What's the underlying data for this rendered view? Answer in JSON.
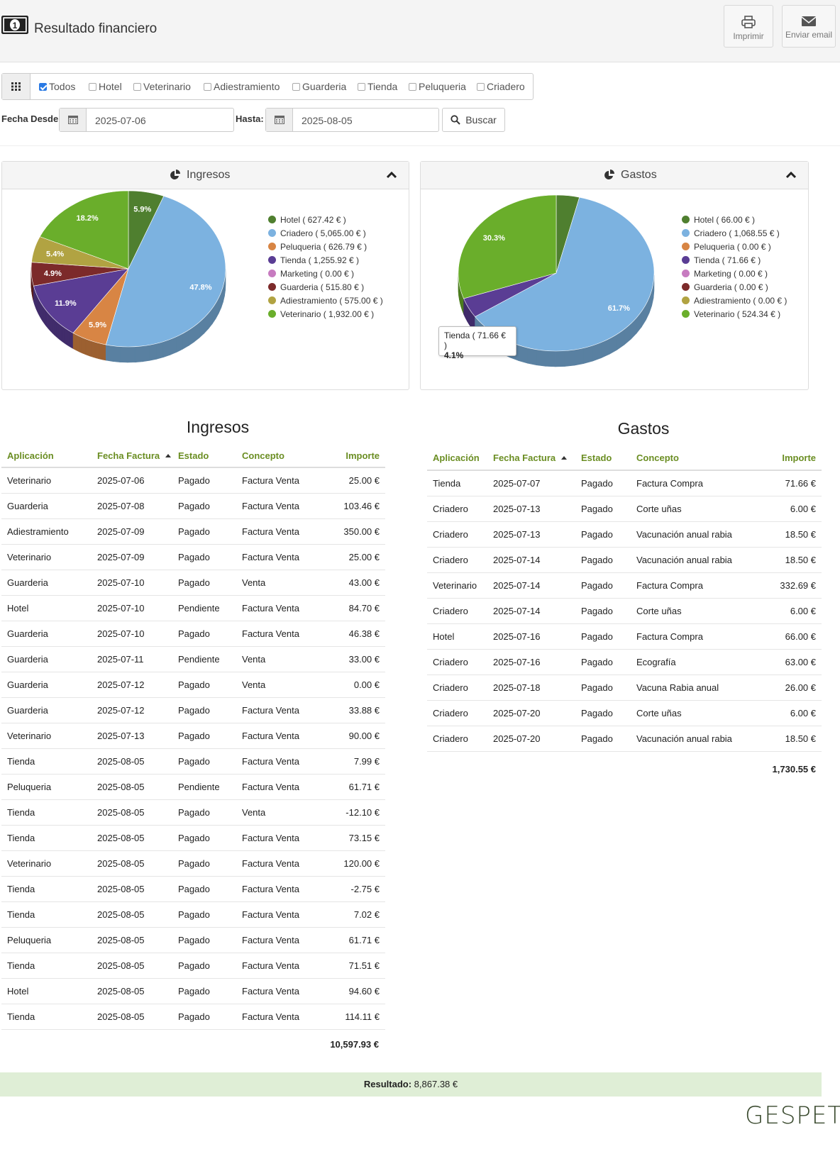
{
  "header": {
    "title": "Resultado financiero",
    "print_label": "Imprimir",
    "email_label": "Enviar email"
  },
  "filters": {
    "apps": [
      {
        "label": "Todos",
        "checked": true
      },
      {
        "label": "Hotel",
        "checked": false
      },
      {
        "label": "Veterinario",
        "checked": false
      },
      {
        "label": "Adiestramiento",
        "checked": false
      },
      {
        "label": "Guarderia",
        "checked": false
      },
      {
        "label": "Tienda",
        "checked": false
      },
      {
        "label": "Peluqueria",
        "checked": false
      },
      {
        "label": "Criadero",
        "checked": false
      }
    ],
    "from_label": "Fecha Desde:",
    "from_value": "2025-07-06",
    "to_label": "Hasta:",
    "to_value": "2025-08-05",
    "search_label": "Buscar"
  },
  "colors": {
    "Hotel": "#4f7f2f",
    "Criadero": "#7cb2e0",
    "Peluqueria": "#d88544",
    "Tienda": "#5a3d94",
    "Marketing": "#c77bc0",
    "Guarderia": "#7c2a2a",
    "Adiestramiento": "#b1a342",
    "Veterinario": "#6aae2b",
    "header_accent": "#6b8e23",
    "result_bg": "#dfeed6"
  },
  "chart_data": [
    {
      "type": "pie",
      "title": "Ingresos",
      "categories": [
        "Hotel",
        "Criadero",
        "Peluqueria",
        "Tienda",
        "Marketing",
        "Guarderia",
        "Adiestramiento",
        "Veterinario"
      ],
      "values": [
        627.42,
        5065.0,
        626.79,
        1255.92,
        0.0,
        515.8,
        575.0,
        1932.0
      ],
      "legend": [
        "Hotel ( 627.42 € )",
        "Criadero ( 5,065.00 € )",
        "Peluqueria ( 626.79 € )",
        "Tienda ( 1,255.92 € )",
        "Marketing ( 0.00 € )",
        "Guarderia ( 515.80 € )",
        "Adiestramiento ( 575.00 € )",
        "Veterinario ( 1,932.00 € )"
      ],
      "slice_labels": [
        "5.9%",
        "47.8%",
        "5.9%",
        "11.9%",
        "",
        "4.9%",
        "5.4%",
        "18.2%"
      ],
      "legend_position": "right"
    },
    {
      "type": "pie",
      "title": "Gastos",
      "categories": [
        "Hotel",
        "Criadero",
        "Peluqueria",
        "Tienda",
        "Marketing",
        "Guarderia",
        "Adiestramiento",
        "Veterinario"
      ],
      "values": [
        66.0,
        1068.55,
        0.0,
        71.66,
        0.0,
        0.0,
        0.0,
        524.34
      ],
      "legend": [
        "Hotel ( 66.00 € )",
        "Criadero ( 1,068.55 € )",
        "Peluqueria ( 0.00 € )",
        "Tienda ( 71.66 € )",
        "Marketing ( 0.00 € )",
        "Guarderia ( 0.00 € )",
        "Adiestramiento ( 0.00 € )",
        "Veterinario ( 524.34 € )"
      ],
      "slice_labels": [
        "",
        "61.7%",
        "",
        "",
        "",
        "",
        "",
        "30.3%"
      ],
      "tooltip": {
        "line1": "Tienda ( 71.66 € )",
        "line2": "4.1%"
      },
      "legend_position": "right"
    }
  ],
  "ingresos": {
    "title": "Ingresos",
    "columns": [
      "Aplicación",
      "Fecha Factura",
      "Estado",
      "Concepto",
      "Importe"
    ],
    "rows": [
      [
        "Veterinario",
        "2025-07-06",
        "Pagado",
        "Factura Venta",
        "25.00 €"
      ],
      [
        "Guarderia",
        "2025-07-08",
        "Pagado",
        "Factura Venta",
        "103.46 €"
      ],
      [
        "Adiestramiento",
        "2025-07-09",
        "Pagado",
        "Factura Venta",
        "350.00 €"
      ],
      [
        "Veterinario",
        "2025-07-09",
        "Pagado",
        "Factura Venta",
        "25.00 €"
      ],
      [
        "Guarderia",
        "2025-07-10",
        "Pagado",
        "Venta",
        "43.00 €"
      ],
      [
        "Hotel",
        "2025-07-10",
        "Pendiente",
        "Factura Venta",
        "84.70 €"
      ],
      [
        "Guarderia",
        "2025-07-10",
        "Pagado",
        "Factura Venta",
        "46.38 €"
      ],
      [
        "Guarderia",
        "2025-07-11",
        "Pendiente",
        "Venta",
        "33.00 €"
      ],
      [
        "Guarderia",
        "2025-07-12",
        "Pagado",
        "Venta",
        "0.00 €"
      ],
      [
        "Guarderia",
        "2025-07-12",
        "Pagado",
        "Factura Venta",
        "33.88 €"
      ],
      [
        "Veterinario",
        "2025-07-13",
        "Pagado",
        "Factura Venta",
        "90.00 €"
      ],
      [
        "Tienda",
        "2025-08-05",
        "Pagado",
        "Factura Venta",
        "7.99 €"
      ],
      [
        "Peluqueria",
        "2025-08-05",
        "Pendiente",
        "Factura Venta",
        "61.71 €"
      ],
      [
        "Tienda",
        "2025-08-05",
        "Pagado",
        "Venta",
        "-12.10 €"
      ],
      [
        "Tienda",
        "2025-08-05",
        "Pagado",
        "Factura Venta",
        "73.15 €"
      ],
      [
        "Veterinario",
        "2025-08-05",
        "Pagado",
        "Factura Venta",
        "120.00 €"
      ],
      [
        "Tienda",
        "2025-08-05",
        "Pagado",
        "Factura Venta",
        "-2.75 €"
      ],
      [
        "Tienda",
        "2025-08-05",
        "Pagado",
        "Factura Venta",
        "7.02 €"
      ],
      [
        "Peluqueria",
        "2025-08-05",
        "Pagado",
        "Factura Venta",
        "61.71 €"
      ],
      [
        "Tienda",
        "2025-08-05",
        "Pagado",
        "Factura Venta",
        "71.51 €"
      ],
      [
        "Hotel",
        "2025-08-05",
        "Pagado",
        "Factura Venta",
        "94.60 €"
      ],
      [
        "Tienda",
        "2025-08-05",
        "Pagado",
        "Factura Venta",
        "114.11 €"
      ]
    ],
    "total": "10,597.93 €"
  },
  "gastos": {
    "title": "Gastos",
    "columns": [
      "Aplicación",
      "Fecha Factura",
      "Estado",
      "Concepto",
      "Importe"
    ],
    "rows": [
      [
        "Tienda",
        "2025-07-07",
        "Pagado",
        "Factura Compra",
        "71.66 €"
      ],
      [
        "Criadero",
        "2025-07-13",
        "Pagado",
        "Corte uñas",
        "6.00 €"
      ],
      [
        "Criadero",
        "2025-07-13",
        "Pagado",
        "Vacunación anual rabia",
        "18.50 €"
      ],
      [
        "Criadero",
        "2025-07-14",
        "Pagado",
        "Vacunación anual rabia",
        "18.50 €"
      ],
      [
        "Veterinario",
        "2025-07-14",
        "Pagado",
        "Factura Compra",
        "332.69 €"
      ],
      [
        "Criadero",
        "2025-07-14",
        "Pagado",
        "Corte uñas",
        "6.00 €"
      ],
      [
        "Hotel",
        "2025-07-16",
        "Pagado",
        "Factura Compra",
        "66.00 €"
      ],
      [
        "Criadero",
        "2025-07-16",
        "Pagado",
        "Ecografía",
        "63.00 €"
      ],
      [
        "Criadero",
        "2025-07-18",
        "Pagado",
        "Vacuna Rabia anual",
        "26.00 €"
      ],
      [
        "Criadero",
        "2025-07-20",
        "Pagado",
        "Corte uñas",
        "6.00 €"
      ],
      [
        "Criadero",
        "2025-07-20",
        "Pagado",
        "Vacunación anual rabia",
        "18.50 €"
      ]
    ],
    "total": "1,730.55 €"
  },
  "result": {
    "label": "Resultado:",
    "value": "8,867.38 €"
  },
  "brand": "GESPET"
}
